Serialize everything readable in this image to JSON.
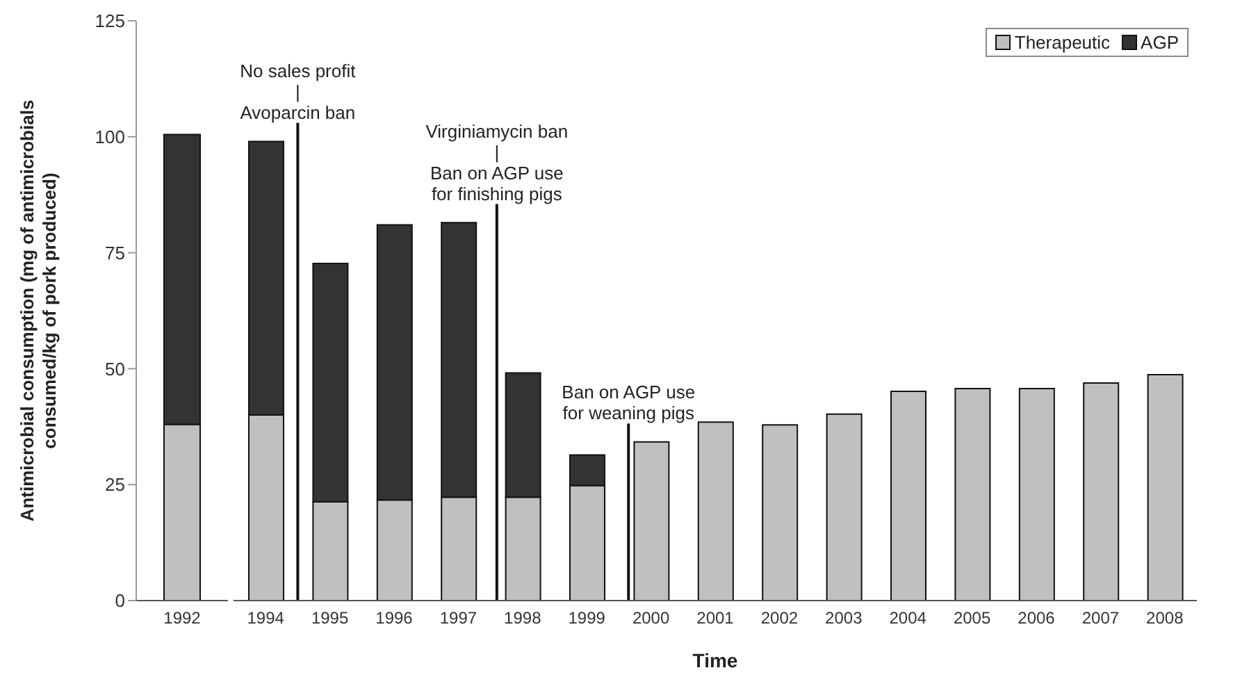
{
  "chart_data": [
    {
      "type": "bar",
      "ylabel": "Antimicrobial consumption (mg of antimicrobials consumed/kg of pork produced)",
      "categories": [
        "1992"
      ],
      "stacked": true,
      "series": [
        {
          "color": "#c0c0c0",
          "values": [
            38
          ]
        },
        {
          "color": "#333333",
          "values": [
            62.5
          ]
        }
      ],
      "ylim": [
        0,
        125
      ],
      "yticks": [
        0,
        25,
        50,
        75,
        100,
        125
      ],
      "grid": false,
      "legend": false
    },
    {
      "type": "bar",
      "xlabel": "Time",
      "x": [
        1994,
        1995,
        1996,
        1997,
        1998,
        1999,
        2000,
        2001,
        2002,
        2003,
        2004,
        2005,
        2006,
        2007,
        2008
      ],
      "stacked": true,
      "series": [
        {
          "name": "Therapeutic",
          "color": "#c0c0c0",
          "values": [
            40,
            21.3,
            21.7,
            22.3,
            22.3,
            24.8,
            34.2,
            38.5,
            37.9,
            40.2,
            45.1,
            45.7,
            45.7,
            46.9,
            48.7
          ]
        },
        {
          "name": "AGP",
          "color": "#333333",
          "values": [
            59,
            51.4,
            59.3,
            59.2,
            26.8,
            6.6,
            null,
            null,
            null,
            null,
            null,
            null,
            null,
            null,
            null
          ]
        }
      ],
      "xlim": [
        1993.5,
        2008.5
      ],
      "xticks": [
        1994,
        1995,
        1996,
        1997,
        1998,
        1999,
        2000,
        2001,
        2002,
        2003,
        2004,
        2005,
        2006,
        2007,
        2008
      ],
      "ylim": [
        0,
        125
      ],
      "yticks": [
        0,
        25,
        50,
        75,
        100,
        125
      ],
      "tick_labels": "x",
      "grid": false,
      "legend": "top right",
      "ref_lines": [
        {
          "axis": "x",
          "value": 1994.5,
          "label": "No sales profit\n|\nAvoparcin ban"
        },
        {
          "axis": "x",
          "value": 1997.6,
          "label": "Virginiamycin ban\n|\nBan on AGP use\nfor finishing pigs"
        },
        {
          "axis": "x",
          "value": 1999.65,
          "label": "Ban on AGP use\nfor weaning pigs"
        }
      ]
    }
  ]
}
